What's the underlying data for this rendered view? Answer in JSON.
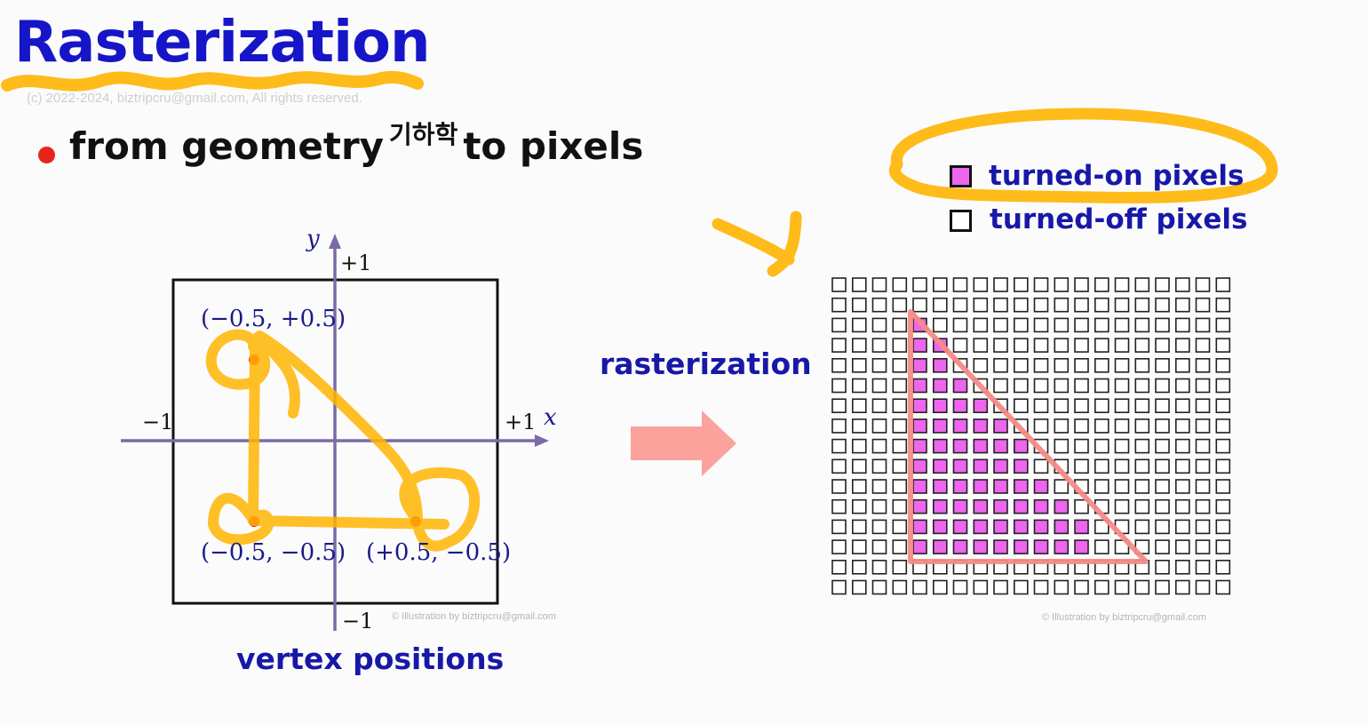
{
  "title": "Rasterization",
  "copyright": "(c) 2022-2024, biztripcru@gmail.com, All rights reserved.",
  "bullet": {
    "before": "from geometry",
    "superscript": "기하학",
    "after": "to pixels"
  },
  "legend": {
    "on_label": "turned-on pixels",
    "off_label": "turned-off pixels",
    "on_color": "#ee66ee",
    "off_color": "#ffffff"
  },
  "arrow_label": "rasterization",
  "vertex_caption": "vertex positions",
  "axes": {
    "x_name": "x",
    "y_name": "y",
    "x_min_label": "−1",
    "x_max_label": "+1",
    "y_max_label": "+1",
    "y_min_label": "−1"
  },
  "vertices": [
    {
      "label": "(−0.5, +0.5)",
      "x": -0.5,
      "y": 0.5
    },
    {
      "label": "(−0.5, −0.5)",
      "x": -0.5,
      "y": -0.5
    },
    {
      "label": "(+0.5, −0.5)",
      "x": 0.5,
      "y": -0.5
    }
  ],
  "grid": {
    "columns": 20,
    "rows": 16,
    "on_pixels": [
      {
        "row": 2,
        "cols": [
          4
        ]
      },
      {
        "row": 3,
        "cols": [
          4,
          5
        ]
      },
      {
        "row": 4,
        "cols": [
          4,
          5
        ]
      },
      {
        "row": 5,
        "cols": [
          4,
          5,
          6
        ]
      },
      {
        "row": 6,
        "cols": [
          4,
          5,
          6,
          7
        ]
      },
      {
        "row": 7,
        "cols": [
          4,
          5,
          6,
          7,
          8
        ]
      },
      {
        "row": 8,
        "cols": [
          4,
          5,
          6,
          7,
          8,
          9
        ]
      },
      {
        "row": 9,
        "cols": [
          4,
          5,
          6,
          7,
          8,
          9
        ]
      },
      {
        "row": 10,
        "cols": [
          4,
          5,
          6,
          7,
          8,
          9,
          10
        ]
      },
      {
        "row": 11,
        "cols": [
          4,
          5,
          6,
          7,
          8,
          9,
          10,
          11
        ]
      },
      {
        "row": 12,
        "cols": [
          4,
          5,
          6,
          7,
          8,
          9,
          10,
          11,
          12
        ]
      },
      {
        "row": 13,
        "cols": [
          4,
          5,
          6,
          7,
          8,
          9,
          10,
          11,
          12
        ]
      }
    ],
    "triangle_color": "#f58a86"
  },
  "watermark": "© Illustration by biztripcru@gmail.com",
  "colors": {
    "title": "#1616c8",
    "labels": "#1818a8",
    "axis": "#7b6aa8",
    "vertex_dot": "#ee1a1a",
    "annotation": "#ffb400",
    "arrow": "#fba29c"
  }
}
